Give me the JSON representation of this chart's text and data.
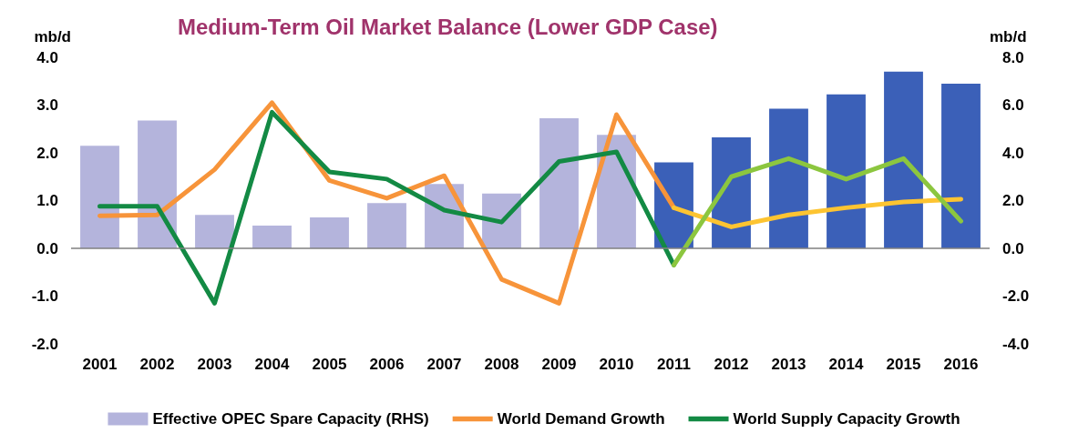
{
  "chart_data": {
    "type": "bar",
    "title": "Medium-Term Oil Market Balance (Lower GDP Case)",
    "ylabel": "mb/d",
    "y2label": "mb/d",
    "categories": [
      "2001",
      "2002",
      "2003",
      "2004",
      "2005",
      "2006",
      "2007",
      "2008",
      "2009",
      "2010",
      "2011",
      "2012",
      "2013",
      "2014",
      "2015",
      "2016"
    ],
    "series": [
      {
        "name": "Effective OPEC Spare Capacity (RHS)",
        "axis": "y2",
        "color": "#b4b4dc",
        "colors": [
          "#b4b4dc",
          "#b4b4dc",
          "#b4b4dc",
          "#b4b4dc",
          "#b4b4dc",
          "#b4b4dc",
          "#b4b4dc",
          "#b4b4dc",
          "#b4b4dc",
          "#b4b4dc",
          "#3b60b8",
          "#3b60b8",
          "#3b60b8",
          "#3b60b8",
          "#3b60b8",
          "#3b60b8"
        ],
        "values": [
          4.3,
          5.35,
          1.4,
          0.95,
          1.3,
          1.9,
          2.7,
          2.3,
          5.45,
          4.75,
          3.6,
          4.65,
          5.85,
          6.45,
          7.4,
          6.9
        ]
      },
      {
        "name": "World Demand Growth",
        "type": "line",
        "color": "#f7943a",
        "values": [
          0.68,
          0.7,
          1.65,
          3.05,
          1.42,
          1.05,
          1.52,
          -0.65,
          -1.15,
          2.8,
          0.85,
          null,
          null,
          null,
          null,
          null
        ]
      },
      {
        "type": "line",
        "color": "#fdc431",
        "values": [
          null,
          null,
          null,
          null,
          null,
          null,
          null,
          null,
          null,
          null,
          0.85,
          0.45,
          0.7,
          0.85,
          0.97,
          1.03
        ]
      },
      {
        "name": "World Supply Capacity Growth",
        "type": "line",
        "color": "#138a44",
        "values": [
          0.88,
          0.88,
          -1.15,
          2.85,
          1.6,
          1.45,
          0.8,
          0.55,
          1.82,
          2.02,
          -0.35,
          null,
          null,
          null,
          null,
          null
        ]
      },
      {
        "type": "line",
        "color": "#8cc63f",
        "values": [
          null,
          null,
          null,
          null,
          null,
          null,
          null,
          null,
          null,
          null,
          -0.35,
          1.5,
          1.88,
          1.45,
          1.88,
          0.57
        ]
      }
    ],
    "ylim": [
      -2,
      4
    ],
    "yticks": [
      {
        "value": -2,
        "label": "-2.0"
      },
      {
        "value": -1,
        "label": "-1.0"
      },
      {
        "value": 0,
        "label": "0.0"
      },
      {
        "value": 1,
        "label": "1.0"
      },
      {
        "value": 2,
        "label": "2.0"
      },
      {
        "value": 3,
        "label": "3.0"
      },
      {
        "value": 4,
        "label": "4.0"
      }
    ],
    "y2lim": [
      -4,
      8
    ],
    "y2ticks": [
      {
        "value": -4,
        "label": "-4.0"
      },
      {
        "value": -2,
        "label": "-2.0"
      },
      {
        "value": 0,
        "label": "0.0"
      },
      {
        "value": 2,
        "label": "2.0"
      },
      {
        "value": 4,
        "label": "4.0"
      },
      {
        "value": 6,
        "label": "6.0"
      },
      {
        "value": 8,
        "label": "8.0"
      }
    ],
    "ref_lines": [
      {
        "axis": "y",
        "value": 0,
        "color": "#808080"
      }
    ],
    "legend": "bottom",
    "marker": "none",
    "line_style": "solid",
    "grid": false
  }
}
